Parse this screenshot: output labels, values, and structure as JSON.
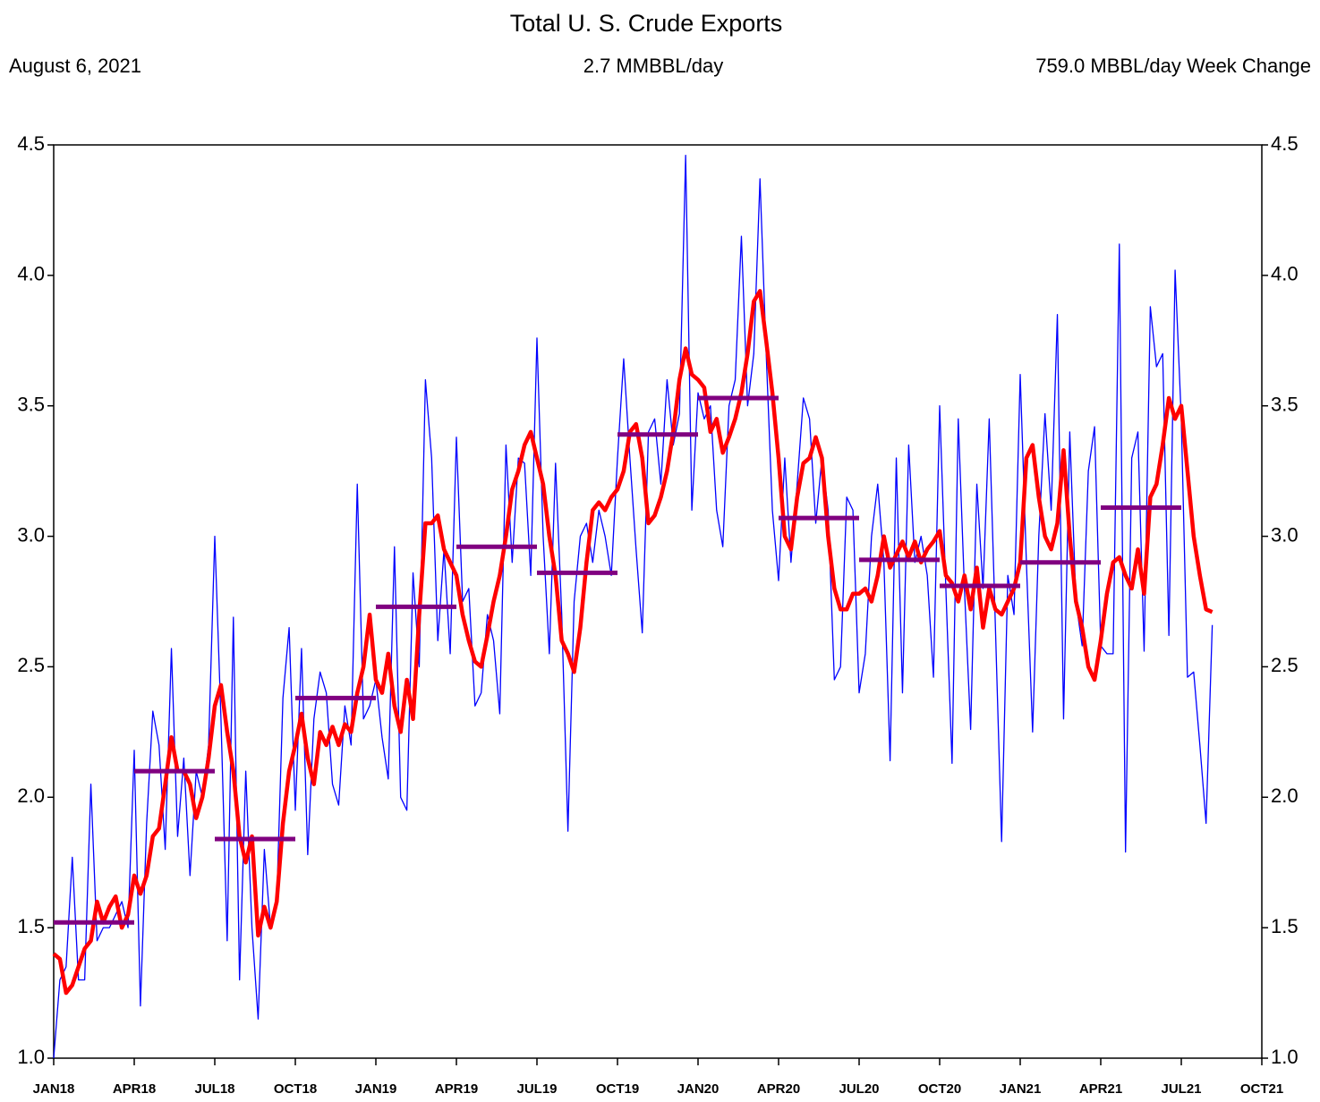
{
  "chart_data": {
    "type": "line",
    "title": "Total U. S. Crude Exports",
    "subtitle_left": "August 6, 2021",
    "subtitle_center": "2.7 MMBBL/day",
    "subtitle_right": "759.0 MBBL/day Week Change",
    "xlim": [
      0,
      195
    ],
    "xticks": [
      {
        "value": 0,
        "label": "JAN18"
      },
      {
        "value": 13,
        "label": "APR18"
      },
      {
        "value": 26,
        "label": "JUL18"
      },
      {
        "value": 39,
        "label": "OCT18"
      },
      {
        "value": 52,
        "label": "JAN19"
      },
      {
        "value": 65,
        "label": "APR19"
      },
      {
        "value": 78,
        "label": "JUL19"
      },
      {
        "value": 91,
        "label": "OCT19"
      },
      {
        "value": 104,
        "label": "JAN20"
      },
      {
        "value": 117,
        "label": "APR20"
      },
      {
        "value": 130,
        "label": "JUL20"
      },
      {
        "value": 143,
        "label": "OCT20"
      },
      {
        "value": 156,
        "label": "JAN21"
      },
      {
        "value": 169,
        "label": "APR21"
      },
      {
        "value": 182,
        "label": "JUL21"
      },
      {
        "value": 195,
        "label": "OCT21"
      }
    ],
    "ylim": [
      1.0,
      4.5
    ],
    "yticks": [
      {
        "value": 1.0,
        "label": "1.0"
      },
      1.5,
      {
        "value": 2.0,
        "label": "2.0"
      },
      2.5,
      {
        "value": 3.0,
        "label": "3.0"
      },
      3.5,
      {
        "value": 4.0,
        "label": "4.0"
      },
      4.5
    ],
    "series": [
      {
        "color": "#0000ff",
        "width": 1.3,
        "values": [
          1.0,
          1.3,
          1.35,
          1.77,
          1.3,
          1.3,
          2.05,
          1.45,
          1.5,
          1.5,
          1.55,
          1.6,
          1.5,
          2.18,
          1.2,
          1.9,
          2.33,
          2.2,
          1.8,
          2.57,
          1.85,
          2.15,
          1.7,
          2.1,
          2.0,
          2.2,
          3.0,
          2.3,
          1.45,
          2.69,
          1.3,
          2.1,
          1.5,
          1.15,
          1.8,
          1.5,
          1.6,
          2.38,
          2.65,
          1.95,
          2.57,
          1.78,
          2.3,
          2.48,
          2.4,
          2.05,
          1.97,
          2.35,
          2.2,
          3.2,
          2.3,
          2.35,
          2.45,
          2.23,
          2.07,
          2.96,
          2.0,
          1.95,
          2.86,
          2.5,
          3.6,
          3.3,
          2.6,
          2.95,
          2.55,
          3.38,
          2.75,
          2.8,
          2.35,
          2.4,
          2.7,
          2.6,
          2.32,
          3.35,
          2.9,
          3.3,
          3.28,
          2.85,
          3.76,
          3.0,
          2.55,
          3.28,
          2.7,
          1.87,
          2.75,
          3.0,
          3.05,
          2.9,
          3.1,
          3.0,
          2.85,
          3.3,
          3.68,
          3.3,
          2.95,
          2.63,
          3.4,
          3.45,
          3.2,
          3.6,
          3.35,
          3.47,
          4.46,
          3.1,
          3.55,
          3.45,
          3.5,
          3.1,
          2.96,
          3.5,
          3.6,
          4.15,
          3.5,
          3.7,
          4.37,
          3.7,
          3.1,
          2.83,
          3.3,
          2.9,
          3.2,
          3.53,
          3.45,
          3.05,
          3.3,
          3.1,
          2.45,
          2.5,
          3.15,
          3.1,
          2.4,
          2.55,
          3.0,
          3.2,
          2.9,
          2.14,
          3.3,
          2.4,
          3.35,
          2.9,
          3.0,
          2.85,
          2.46,
          3.5,
          2.8,
          2.13,
          3.45,
          2.8,
          2.26,
          3.2,
          2.8,
          3.45,
          2.65,
          1.83,
          2.85,
          2.7,
          3.62,
          2.9,
          2.25,
          3.0,
          3.47,
          3.1,
          3.85,
          2.3,
          3.4,
          2.75,
          2.58,
          3.25,
          3.42,
          2.58,
          2.55,
          2.55,
          4.12,
          1.79,
          3.3,
          3.4,
          2.56,
          3.88,
          3.65,
          3.7,
          2.62,
          4.02,
          3.45,
          2.46,
          2.48,
          2.2,
          1.9,
          2.66
        ]
      },
      {
        "color": "#ff0000",
        "width": 4.5,
        "values": [
          1.4,
          1.38,
          1.25,
          1.28,
          1.35,
          1.42,
          1.45,
          1.6,
          1.52,
          1.58,
          1.62,
          1.5,
          1.55,
          1.7,
          1.63,
          1.7,
          1.85,
          1.88,
          2.05,
          2.23,
          2.1,
          2.1,
          2.05,
          1.92,
          2.0,
          2.15,
          2.35,
          2.43,
          2.25,
          2.1,
          1.85,
          1.75,
          1.85,
          1.47,
          1.58,
          1.5,
          1.6,
          1.9,
          2.1,
          2.2,
          2.32,
          2.15,
          2.05,
          2.25,
          2.2,
          2.27,
          2.2,
          2.28,
          2.25,
          2.4,
          2.5,
          2.7,
          2.45,
          2.4,
          2.55,
          2.35,
          2.25,
          2.45,
          2.3,
          2.7,
          3.05,
          3.05,
          3.08,
          2.95,
          2.9,
          2.85,
          2.7,
          2.6,
          2.52,
          2.5,
          2.62,
          2.75,
          2.85,
          3.0,
          3.18,
          3.25,
          3.35,
          3.4,
          3.3,
          3.2,
          3.0,
          2.85,
          2.6,
          2.55,
          2.48,
          2.65,
          2.9,
          3.1,
          3.13,
          3.1,
          3.15,
          3.18,
          3.25,
          3.4,
          3.43,
          3.3,
          3.05,
          3.08,
          3.15,
          3.25,
          3.4,
          3.6,
          3.72,
          3.62,
          3.6,
          3.57,
          3.4,
          3.45,
          3.32,
          3.38,
          3.45,
          3.55,
          3.7,
          3.9,
          3.94,
          3.75,
          3.55,
          3.3,
          3.0,
          2.95,
          3.15,
          3.28,
          3.3,
          3.38,
          3.3,
          3.0,
          2.8,
          2.72,
          2.72,
          2.78,
          2.78,
          2.8,
          2.75,
          2.85,
          3.0,
          2.88,
          2.93,
          2.98,
          2.92,
          2.98,
          2.9,
          2.95,
          2.98,
          3.02,
          2.85,
          2.82,
          2.75,
          2.85,
          2.72,
          2.88,
          2.65,
          2.8,
          2.72,
          2.7,
          2.75,
          2.8,
          2.9,
          3.3,
          3.35,
          3.15,
          3.0,
          2.95,
          3.05,
          3.33,
          3.0,
          2.75,
          2.65,
          2.5,
          2.45,
          2.6,
          2.78,
          2.9,
          2.92,
          2.85,
          2.8,
          2.95,
          2.78,
          3.15,
          3.2,
          3.35,
          3.53,
          3.45,
          3.5,
          3.25,
          3.0,
          2.85,
          2.72,
          2.71
        ]
      },
      {
        "color": "#800080",
        "width": 5,
        "kind": "steps",
        "x": [
          0,
          13,
          26,
          39,
          52,
          65,
          78,
          91,
          104,
          117,
          130,
          143,
          156,
          169
        ],
        "values": [
          1.52,
          2.1,
          1.84,
          2.38,
          2.73,
          2.96,
          2.86,
          3.39,
          3.53,
          3.07,
          2.91,
          2.81,
          2.9,
          3.11
        ]
      }
    ]
  }
}
